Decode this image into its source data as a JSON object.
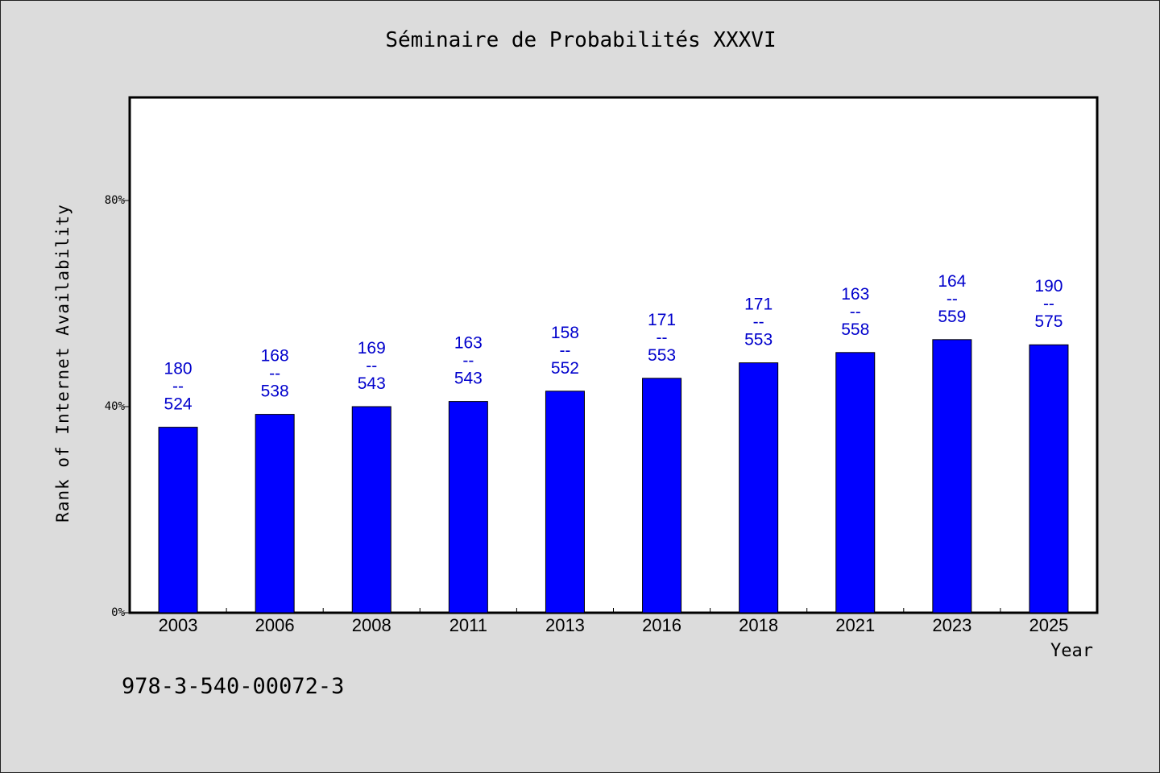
{
  "colors": {
    "background": "#dcdcdc",
    "plot_background": "#ffffff",
    "bar": "#0000ff",
    "data_label": "#0000cc"
  },
  "footnote": "978-3-540-00072-3",
  "chart_data": {
    "type": "bar",
    "title": "Séminaire de Probabilités XXXVI",
    "xlabel": "Year",
    "ylabel": "Rank of Internet Availability",
    "categories": [
      "2003",
      "2006",
      "2008",
      "2011",
      "2013",
      "2016",
      "2018",
      "2021",
      "2023",
      "2025"
    ],
    "values": [
      36,
      38.5,
      40,
      41,
      43,
      45.5,
      48.5,
      50.5,
      53,
      52
    ],
    "value_unit": "%",
    "data_labels": [
      [
        "180",
        "--",
        "524"
      ],
      [
        "168",
        "--",
        "538"
      ],
      [
        "169",
        "--",
        "543"
      ],
      [
        "163",
        "--",
        "543"
      ],
      [
        "158",
        "--",
        "552"
      ],
      [
        "171",
        "--",
        "553"
      ],
      [
        "171",
        "--",
        "553"
      ],
      [
        "163",
        "--",
        "558"
      ],
      [
        "164",
        "--",
        "559"
      ],
      [
        "190",
        "--",
        "575"
      ]
    ],
    "ylim": [
      0,
      100
    ],
    "yticks": [
      0,
      40,
      80
    ],
    "ytick_labels": [
      "0%",
      "40%",
      "80%"
    ],
    "grid": false,
    "legend": "none"
  }
}
